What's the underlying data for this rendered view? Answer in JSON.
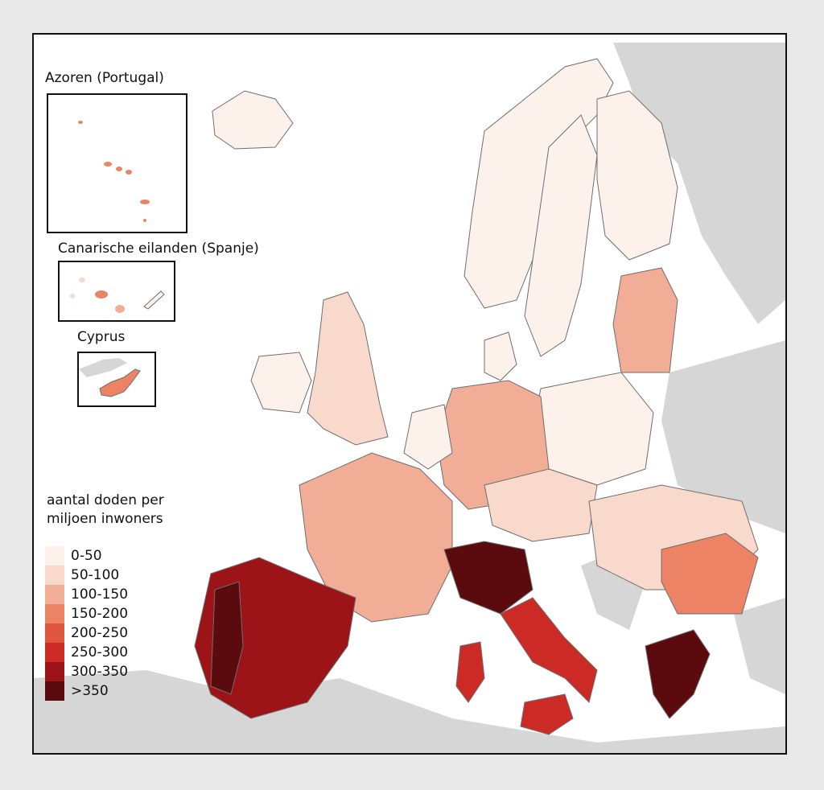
{
  "insets": {
    "azores": "Azoren (Portugal)",
    "canaries": "Canarische eilanden (Spanje)",
    "cyprus": "Cyprus"
  },
  "legend": {
    "title_line1": "aantal doden per",
    "title_line2": "miljoen inwoners",
    "classes": [
      {
        "label": "0-50",
        "color": "#fdf1ec"
      },
      {
        "label": "50-100",
        "color": "#f9d9cc"
      },
      {
        "label": "100-150",
        "color": "#f2ad96"
      },
      {
        "label": "150-200",
        "color": "#ec8364"
      },
      {
        "label": "200-250",
        "color": "#e05540"
      },
      {
        "label": "250-300",
        "color": "#cc2a24"
      },
      {
        "label": "300-350",
        "color": "#9c1417"
      },
      {
        "label": ">350",
        "color": "#5b0b0d"
      }
    ]
  },
  "colors": {
    "sea": "#ffffff",
    "non_eu_land": "#d6d6d6",
    "border": "#6e6e6e"
  }
}
